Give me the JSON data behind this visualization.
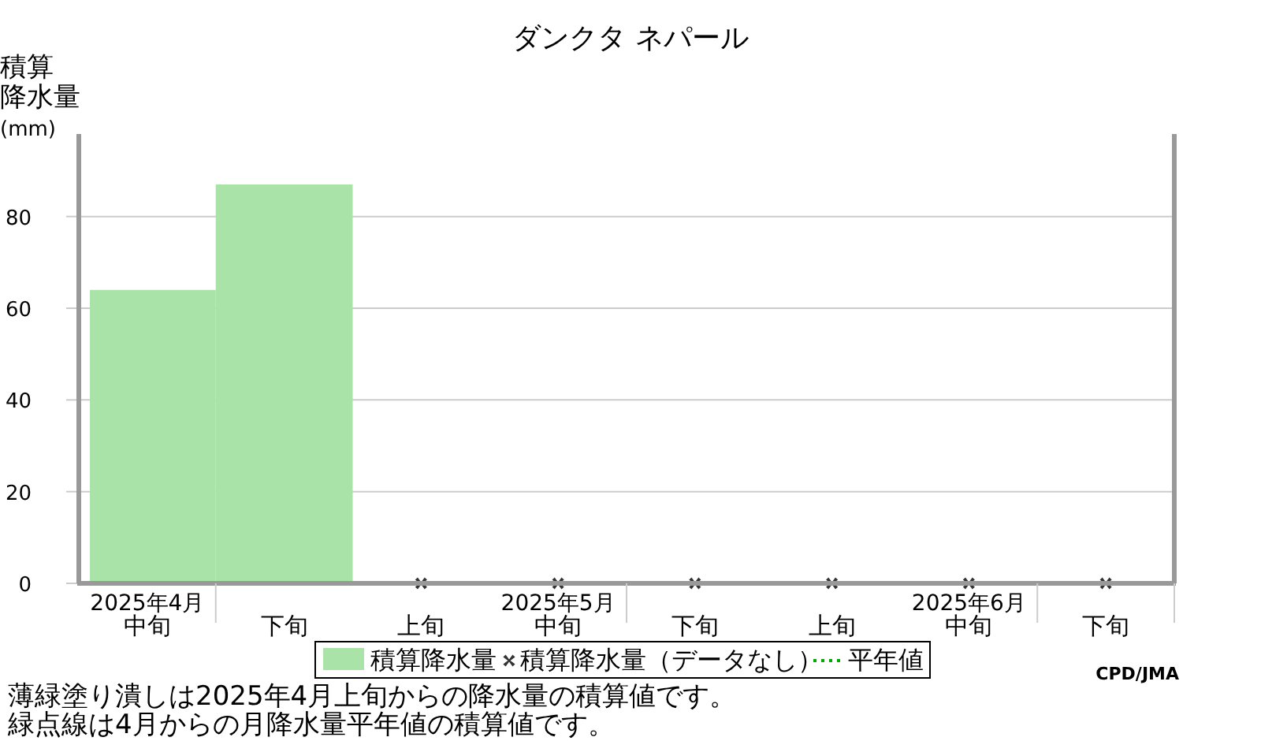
{
  "chart_data": {
    "type": "bar",
    "title": "ダンクタ ネパール",
    "ylabel": "積算降水量(mm)",
    "categories": [
      "2025年4月中旬",
      "下旬",
      "上旬",
      "2025年5月中旬",
      "下旬",
      "上旬",
      "2025年6月中旬",
      "下旬"
    ],
    "series": [
      {
        "name": "積算降水量",
        "color": "#aae3a8",
        "values": [
          64,
          87,
          null,
          null,
          null,
          null,
          null,
          null
        ]
      },
      {
        "name": "積算降水量（データなし）",
        "type": "scatter",
        "marker": "cross",
        "color": "#333333",
        "values": [
          null,
          null,
          0,
          0,
          0,
          0,
          0,
          0
        ]
      },
      {
        "name": "平年値",
        "type": "line",
        "line_style": "dotted",
        "color": "#00aa00",
        "values": [
          null,
          null,
          null,
          null,
          null,
          null,
          null,
          null
        ]
      }
    ],
    "ylim": [
      0,
      98
    ],
    "yticks": [
      0,
      20,
      40,
      60,
      80
    ],
    "grid": "y",
    "legend": "bottom",
    "annotations": [
      "薄緑塗り潰しは2025年4月上旬からの降水量の積算値です。",
      "緑点線は4月からの月降水量平年値の積算値です。",
      "CPD/JMA"
    ]
  }
}
